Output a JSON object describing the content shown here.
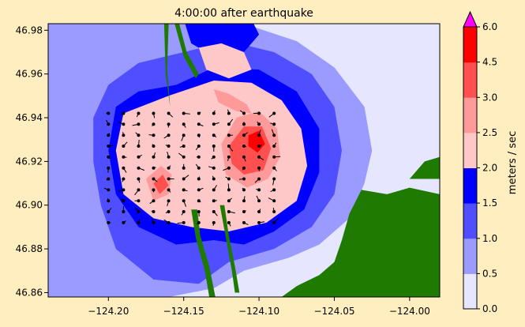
{
  "chart_data": {
    "type": "heatmap",
    "title": "4:00:00 after earthquake",
    "xlabel": "",
    "ylabel": "",
    "xlim": [
      -124.24,
      -123.98
    ],
    "ylim": [
      46.858,
      46.983
    ],
    "x_ticks": [
      -124.2,
      -124.15,
      -124.1,
      -124.05,
      -124.0
    ],
    "x_tick_labels": [
      "−124.20",
      "−124.15",
      "−124.10",
      "−124.05",
      "−124.00"
    ],
    "y_ticks": [
      46.86,
      46.88,
      46.9,
      46.92,
      46.94,
      46.96,
      46.98
    ],
    "y_tick_labels": [
      "46.86",
      "46.88",
      "46.90",
      "46.92",
      "46.94",
      "46.96",
      "46.98"
    ],
    "grid": false,
    "colorbar": {
      "label": "meters / sec",
      "extend": "max",
      "levels": [
        0.0,
        0.5,
        1.0,
        1.5,
        2.0,
        2.5,
        3.0,
        4.5,
        6.0
      ],
      "level_labels": [
        "0.0",
        "0.5",
        "1.0",
        "1.5",
        "2.0",
        "2.5",
        "3.0",
        "4.5",
        "6.0"
      ],
      "colors": [
        "#e6e6ff",
        "#9a9aff",
        "#4f4fff",
        "#0000ff",
        "#ffc8c8",
        "#ff9a9a",
        "#ff5050",
        "#ff0000"
      ],
      "extend_color": "#ff00ff"
    },
    "land_color": "#1e7a00",
    "regions": [
      {
        "level": 1,
        "points": [
          [
            -124.24,
            46.983
          ],
          [
            -124.24,
            46.858
          ],
          [
            -124.2,
            46.858
          ],
          [
            -124.16,
            46.858
          ],
          [
            -124.13,
            46.862
          ],
          [
            -124.11,
            46.87
          ],
          [
            -124.08,
            46.876
          ],
          [
            -124.06,
            46.882
          ],
          [
            -124.04,
            46.894
          ],
          [
            -124.03,
            46.91
          ],
          [
            -124.025,
            46.925
          ],
          [
            -124.03,
            46.945
          ],
          [
            -124.05,
            46.963
          ],
          [
            -124.075,
            46.975
          ],
          [
            -124.11,
            46.983
          ]
        ]
      },
      {
        "level": 2,
        "points": [
          [
            -124.2,
            46.955
          ],
          [
            -124.21,
            46.94
          ],
          [
            -124.21,
            46.92
          ],
          [
            -124.205,
            46.9
          ],
          [
            -124.195,
            46.88
          ],
          [
            -124.17,
            46.866
          ],
          [
            -124.14,
            46.864
          ],
          [
            -124.12,
            46.874
          ],
          [
            -124.09,
            46.88
          ],
          [
            -124.065,
            46.89
          ],
          [
            -124.05,
            46.905
          ],
          [
            -124.045,
            46.925
          ],
          [
            -124.05,
            46.945
          ],
          [
            -124.065,
            46.96
          ],
          [
            -124.09,
            46.97
          ],
          [
            -124.12,
            46.975
          ],
          [
            -124.15,
            46.97
          ],
          [
            -124.18,
            46.965
          ]
        ]
      },
      {
        "level": 3,
        "points": [
          [
            -124.195,
            46.945
          ],
          [
            -124.2,
            46.925
          ],
          [
            -124.195,
            46.905
          ],
          [
            -124.18,
            46.89
          ],
          [
            -124.155,
            46.882
          ],
          [
            -124.13,
            46.884
          ],
          [
            -124.11,
            46.882
          ],
          [
            -124.09,
            46.888
          ],
          [
            -124.07,
            46.898
          ],
          [
            -124.06,
            46.915
          ],
          [
            -124.06,
            46.935
          ],
          [
            -124.075,
            46.952
          ],
          [
            -124.1,
            46.962
          ],
          [
            -124.13,
            46.963
          ],
          [
            -124.155,
            46.955
          ],
          [
            -124.18,
            46.952
          ]
        ]
      },
      {
        "level": 3,
        "points": [
          [
            -124.15,
            46.985
          ],
          [
            -124.145,
            46.974
          ],
          [
            -124.13,
            46.968
          ],
          [
            -124.11,
            46.97
          ],
          [
            -124.1,
            46.978
          ],
          [
            -124.105,
            46.985
          ]
        ]
      },
      {
        "level": 4,
        "points": [
          [
            -124.19,
            46.942
          ],
          [
            -124.195,
            46.925
          ],
          [
            -124.19,
            46.905
          ],
          [
            -124.17,
            46.894
          ],
          [
            -124.145,
            46.89
          ],
          [
            -124.12,
            46.888
          ],
          [
            -124.095,
            46.892
          ],
          [
            -124.075,
            46.902
          ],
          [
            -124.068,
            46.918
          ],
          [
            -124.072,
            46.935
          ],
          [
            -124.085,
            46.948
          ],
          [
            -124.105,
            46.956
          ],
          [
            -124.13,
            46.957
          ],
          [
            -124.16,
            46.95
          ]
        ]
      },
      {
        "level": 4,
        "points": [
          [
            -124.14,
            46.972
          ],
          [
            -124.135,
            46.962
          ],
          [
            -124.12,
            46.958
          ],
          [
            -124.105,
            46.962
          ],
          [
            -124.11,
            46.97
          ],
          [
            -124.125,
            46.974
          ]
        ]
      },
      {
        "level": 5,
        "points": [
          [
            -124.125,
            46.928
          ],
          [
            -124.115,
            46.94
          ],
          [
            -124.1,
            46.943
          ],
          [
            -124.088,
            46.935
          ],
          [
            -124.086,
            46.922
          ],
          [
            -124.094,
            46.912
          ],
          [
            -124.108,
            46.908
          ],
          [
            -124.122,
            46.914
          ]
        ]
      },
      {
        "level": 5,
        "points": [
          [
            -124.175,
            46.912
          ],
          [
            -124.165,
            46.918
          ],
          [
            -124.158,
            46.914
          ],
          [
            -124.16,
            46.905
          ],
          [
            -124.17,
            46.902
          ]
        ]
      },
      {
        "level": 5,
        "points": [
          [
            -124.13,
            46.953
          ],
          [
            -124.12,
            46.951
          ],
          [
            -124.108,
            46.946
          ],
          [
            -124.105,
            46.942
          ],
          [
            -124.115,
            46.943
          ],
          [
            -124.127,
            46.947
          ]
        ]
      },
      {
        "level": 6,
        "points": [
          [
            -124.12,
            46.927
          ],
          [
            -124.11,
            46.936
          ],
          [
            -124.098,
            46.936
          ],
          [
            -124.092,
            46.926
          ],
          [
            -124.097,
            46.916
          ],
          [
            -124.11,
            46.914
          ],
          [
            -124.118,
            46.919
          ]
        ]
      },
      {
        "level": 6,
        "points": [
          [
            -124.17,
            46.91
          ],
          [
            -124.164,
            46.914
          ],
          [
            -124.16,
            46.909
          ],
          [
            -124.166,
            46.905
          ]
        ]
      },
      {
        "level": 7,
        "points": [
          [
            -124.107,
            46.932
          ],
          [
            -124.1,
            46.934
          ],
          [
            -124.096,
            46.928
          ],
          [
            -124.101,
            46.924
          ],
          [
            -124.107,
            46.927
          ]
        ]
      }
    ],
    "land": [
      {
        "points": [
          [
            -124.032,
            46.907
          ],
          [
            -124.04,
            46.896
          ],
          [
            -124.045,
            46.884
          ],
          [
            -124.05,
            46.874
          ],
          [
            -124.06,
            46.868
          ],
          [
            -124.075,
            46.863
          ],
          [
            -124.085,
            46.858
          ],
          [
            -123.98,
            46.858
          ],
          [
            -123.98,
            46.905
          ],
          [
            -124.0,
            46.908
          ],
          [
            -124.015,
            46.905
          ]
        ]
      },
      {
        "points": [
          [
            -124.0,
            46.912
          ],
          [
            -123.98,
            46.912
          ],
          [
            -123.98,
            46.922
          ],
          [
            -123.99,
            46.92
          ]
        ]
      },
      {
        "points": [
          [
            -124.163,
            46.983
          ],
          [
            -124.162,
            46.96
          ],
          [
            -124.158,
            46.94
          ],
          [
            -124.159,
            46.945
          ],
          [
            -124.161,
            46.962
          ],
          [
            -124.16,
            46.983
          ]
        ]
      },
      {
        "points": [
          [
            -124.153,
            46.983
          ],
          [
            -124.148,
            46.97
          ],
          [
            -124.14,
            46.96
          ],
          [
            -124.142,
            46.958
          ],
          [
            -124.15,
            46.968
          ],
          [
            -124.156,
            46.983
          ]
        ]
      },
      {
        "points": [
          [
            -124.145,
            46.898
          ],
          [
            -124.142,
            46.885
          ],
          [
            -124.136,
            46.87
          ],
          [
            -124.133,
            46.858
          ],
          [
            -124.129,
            46.858
          ],
          [
            -124.133,
            46.872
          ],
          [
            -124.139,
            46.886
          ],
          [
            -124.141,
            46.898
          ]
        ]
      },
      {
        "points": [
          [
            -124.126,
            46.9
          ],
          [
            -124.122,
            46.885
          ],
          [
            -124.118,
            46.87
          ],
          [
            -124.116,
            46.86
          ],
          [
            -124.113,
            46.86
          ],
          [
            -124.116,
            46.872
          ],
          [
            -124.12,
            46.886
          ],
          [
            -124.123,
            46.9
          ]
        ]
      }
    ],
    "vectors": {
      "grid_x": [
        -124.2,
        -124.19,
        -124.18,
        -124.17,
        -124.16,
        -124.15,
        -124.14,
        -124.13,
        -124.12,
        -124.11,
        -124.1,
        -124.09
      ],
      "grid_y": [
        46.892,
        46.897,
        46.902,
        46.907,
        46.912,
        46.917,
        46.922,
        46.927,
        46.932,
        46.937,
        46.942
      ]
    }
  }
}
